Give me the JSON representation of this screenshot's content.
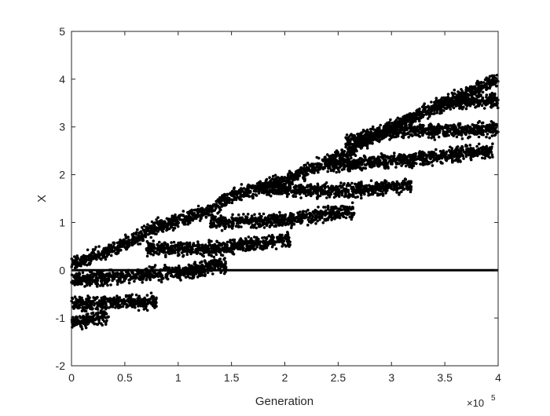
{
  "chart_data": {
    "type": "scatter",
    "title": "",
    "xlabel": "Generation",
    "ylabel": "X",
    "x_exponent_label": "×10",
    "x_exponent": "5",
    "xlim": [
      0,
      400000
    ],
    "ylim": [
      -2,
      5
    ],
    "xticks": [
      0,
      50000,
      100000,
      150000,
      200000,
      250000,
      300000,
      350000,
      400000
    ],
    "xtick_labels": [
      "0",
      "0.5",
      "1",
      "1.5",
      "2",
      "2.5",
      "3",
      "3.5",
      "4"
    ],
    "yticks": [
      -2,
      -1,
      0,
      1,
      2,
      3,
      4,
      5
    ],
    "ytick_labels": [
      "-2",
      "-1",
      "0",
      "1",
      "2",
      "3",
      "4",
      "5"
    ],
    "grid": false,
    "marker_color": "#000000",
    "branches": [
      {
        "points": [
          [
            0,
            0.12
          ],
          [
            50000,
            0.55
          ],
          [
            80000,
            0.9
          ],
          [
            130000,
            1.25
          ],
          [
            150000,
            1.55
          ],
          [
            200000,
            1.88
          ],
          [
            250000,
            2.38
          ],
          [
            300000,
            3.0
          ],
          [
            350000,
            3.5
          ],
          [
            400000,
            4.0
          ]
        ]
      },
      {
        "points": [
          [
            340000,
            3.45
          ],
          [
            370000,
            3.55
          ],
          [
            400000,
            3.55
          ]
        ]
      },
      {
        "points": [
          [
            257000,
            2.7
          ],
          [
            300000,
            2.92
          ],
          [
            400000,
            2.95
          ]
        ]
      },
      {
        "points": [
          [
            240000,
            2.2
          ],
          [
            300000,
            2.28
          ],
          [
            395000,
            2.5
          ]
        ]
      },
      {
        "points": [
          [
            180000,
            1.72
          ],
          [
            250000,
            1.65
          ],
          [
            320000,
            1.78
          ]
        ]
      },
      {
        "points": [
          [
            130000,
            1.0
          ],
          [
            200000,
            1.05
          ],
          [
            265000,
            1.25
          ]
        ]
      },
      {
        "points": [
          [
            70000,
            0.45
          ],
          [
            130000,
            0.45
          ],
          [
            205000,
            0.65
          ]
        ]
      },
      {
        "points": [
          [
            110000,
            0.03
          ],
          [
            145000,
            0.1
          ]
        ]
      },
      {
        "points": [
          [
            0,
            -0.2
          ],
          [
            60000,
            -0.12
          ],
          [
            125000,
            0.0
          ]
        ]
      },
      {
        "points": [
          [
            0,
            -0.7
          ],
          [
            80000,
            -0.65
          ]
        ]
      },
      {
        "points": [
          [
            0,
            -1.1
          ],
          [
            35000,
            -0.95
          ]
        ]
      }
    ],
    "constant_line": {
      "y": 0,
      "x": [
        0,
        400000
      ]
    }
  }
}
